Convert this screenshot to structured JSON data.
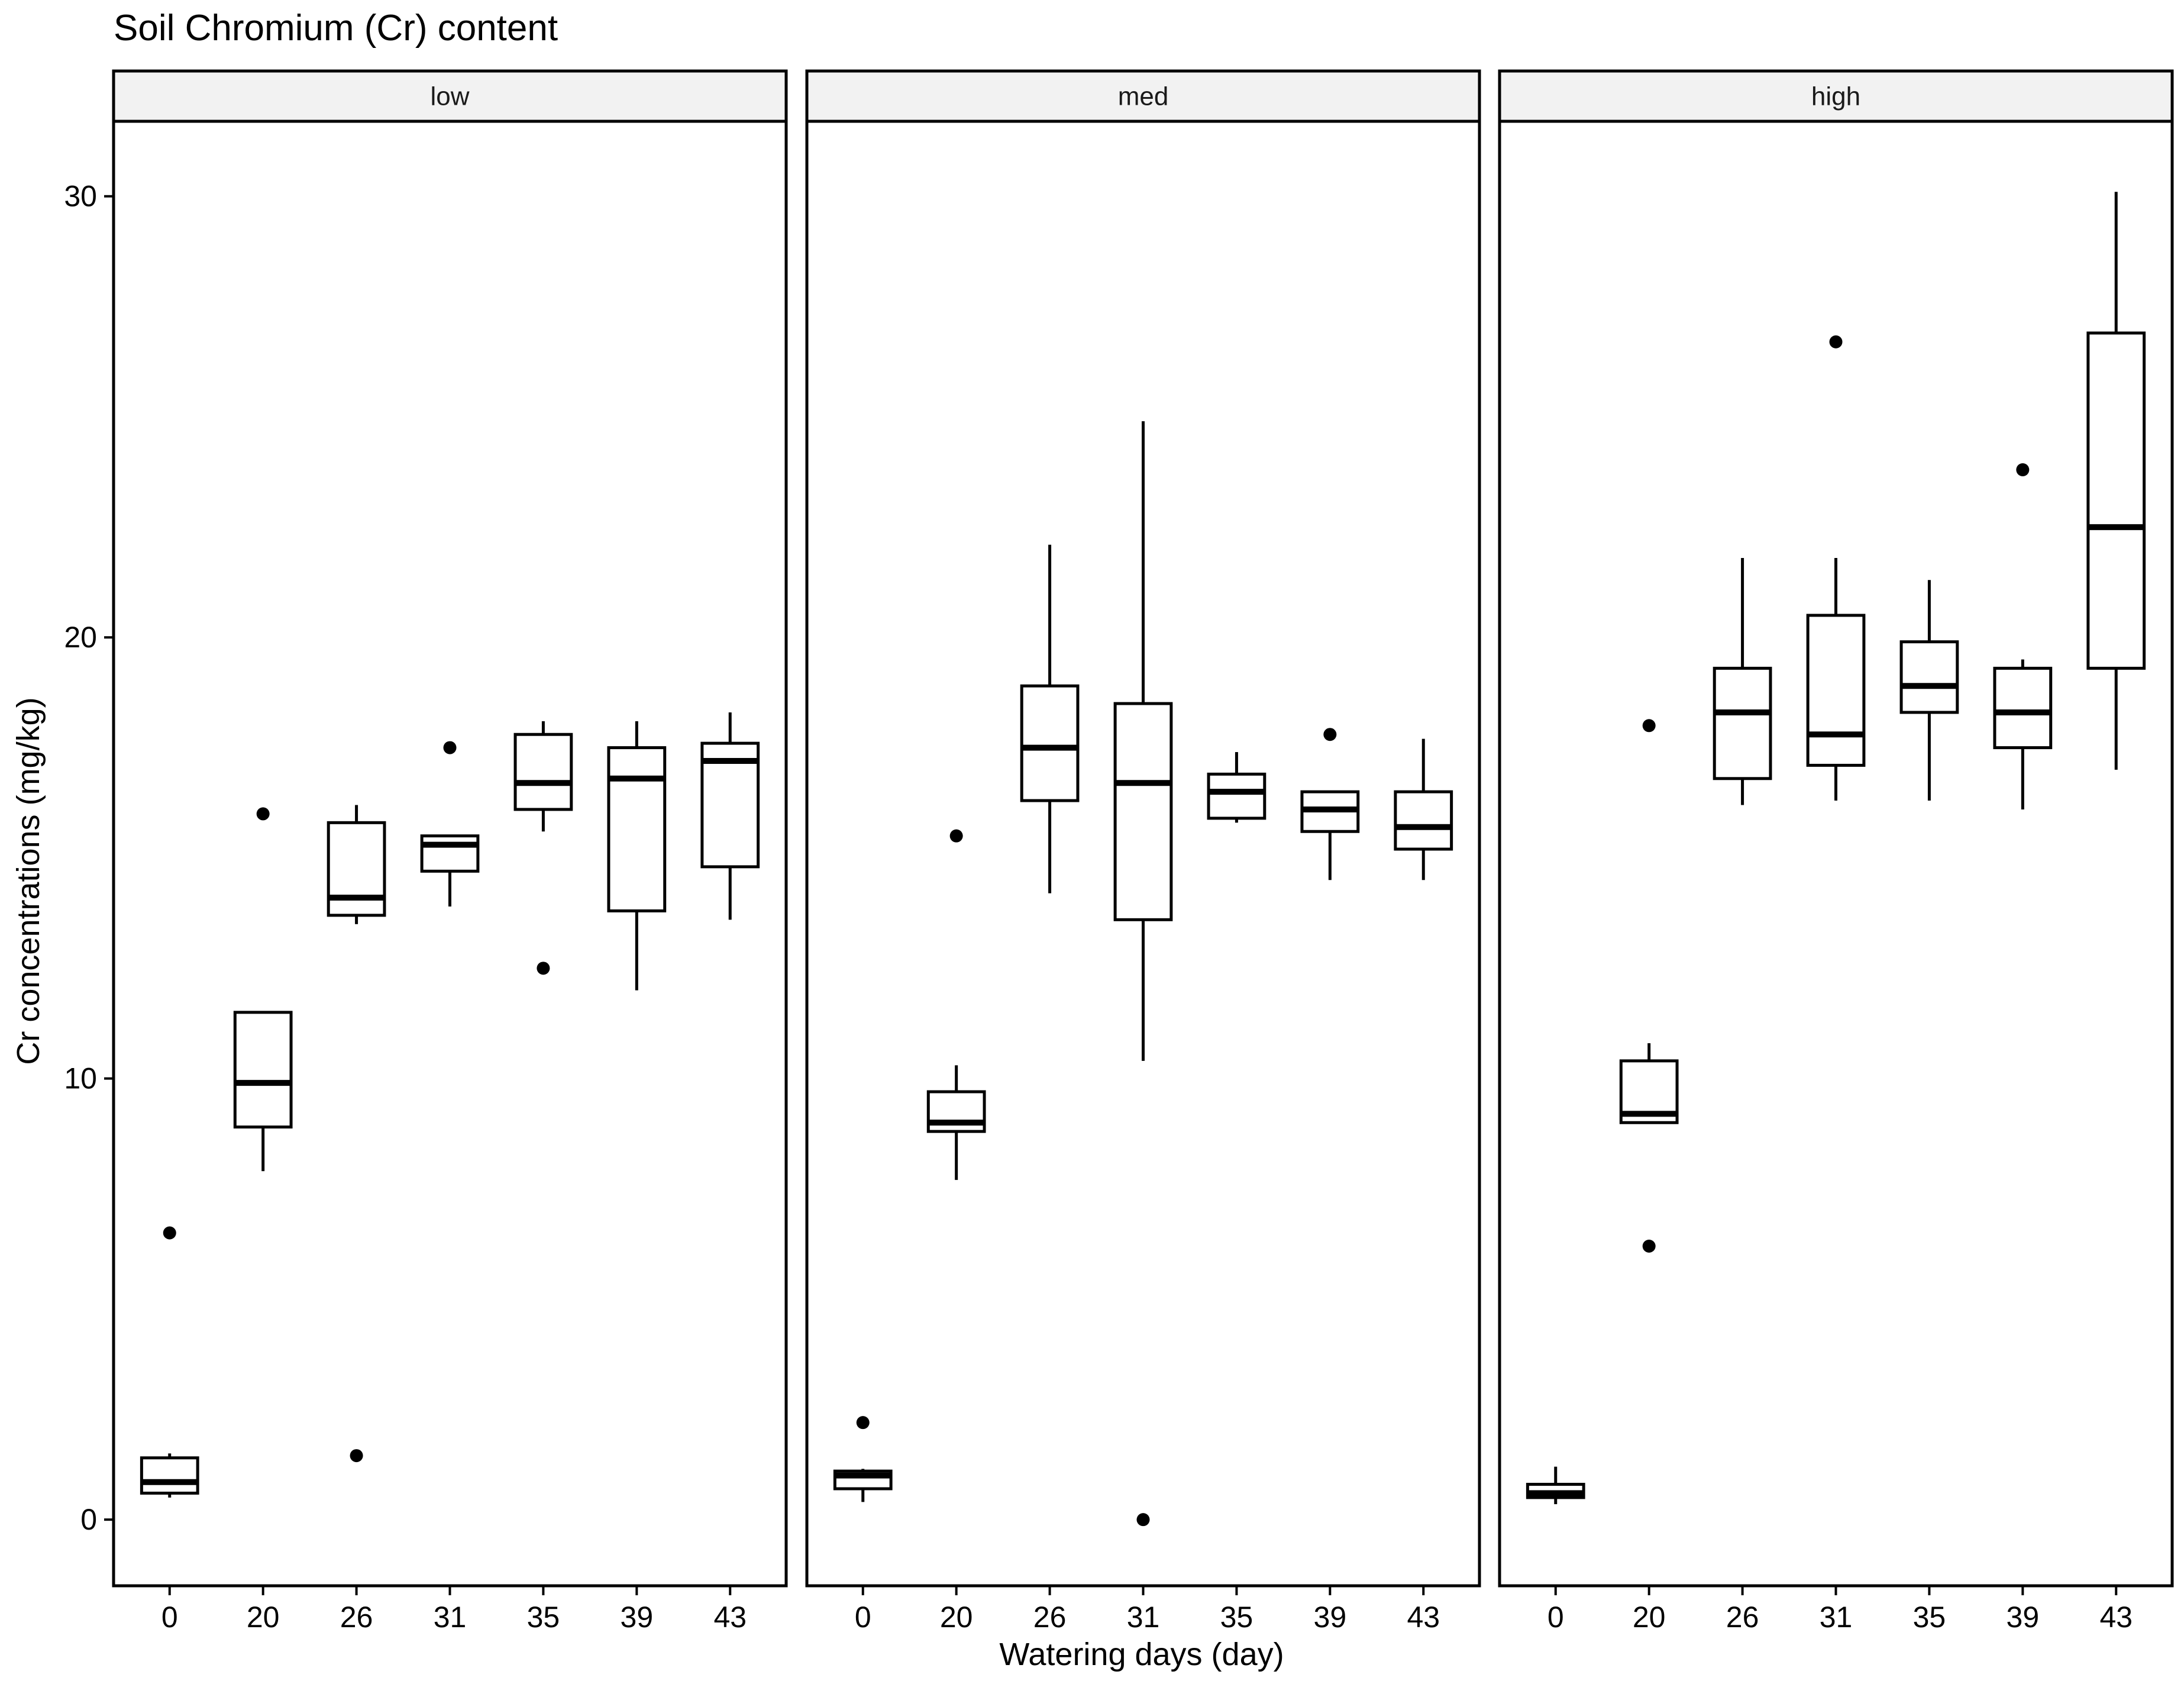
{
  "chart_data": {
    "type": "boxplot",
    "title": "Soil Chromium (Cr) content",
    "xlabel": "Watering days (day)",
    "ylabel": "Cr concentrations (mg/kg)",
    "ylim": [
      -1.5,
      31.7
    ],
    "yticks": [
      0,
      10,
      20,
      30
    ],
    "categories": [
      "0",
      "20",
      "26",
      "31",
      "35",
      "39",
      "43"
    ],
    "panels": [
      {
        "label": "low",
        "boxes": [
          {
            "x": "0",
            "lower": 0.5,
            "q1": 0.6,
            "median": 0.85,
            "q3": 1.4,
            "upper": 1.5,
            "outliers": [
              6.5
            ]
          },
          {
            "x": "20",
            "lower": 7.9,
            "q1": 8.9,
            "median": 9.9,
            "q3": 11.5,
            "upper": 11.5,
            "outliers": [
              16.0
            ]
          },
          {
            "x": "26",
            "lower": 13.5,
            "q1": 13.7,
            "median": 14.1,
            "q3": 15.8,
            "upper": 16.2,
            "outliers": [
              1.45
            ]
          },
          {
            "x": "31",
            "lower": 13.9,
            "q1": 14.7,
            "median": 15.3,
            "q3": 15.5,
            "upper": 15.5,
            "outliers": [
              17.5
            ]
          },
          {
            "x": "35",
            "lower": 15.6,
            "q1": 16.1,
            "median": 16.7,
            "q3": 17.8,
            "upper": 18.1,
            "outliers": [
              12.5
            ]
          },
          {
            "x": "39",
            "lower": 12.0,
            "q1": 13.8,
            "median": 16.8,
            "q3": 17.5,
            "upper": 18.1,
            "outliers": []
          },
          {
            "x": "43",
            "lower": 13.6,
            "q1": 14.8,
            "median": 17.2,
            "q3": 17.6,
            "upper": 18.3,
            "outliers": []
          }
        ]
      },
      {
        "label": "med",
        "boxes": [
          {
            "x": "0",
            "lower": 0.4,
            "q1": 0.7,
            "median": 1.0,
            "q3": 1.1,
            "upper": 1.15,
            "outliers": [
              2.2
            ]
          },
          {
            "x": "20",
            "lower": 7.7,
            "q1": 8.8,
            "median": 9.0,
            "q3": 9.7,
            "upper": 10.3,
            "outliers": [
              15.5
            ]
          },
          {
            "x": "26",
            "lower": 14.2,
            "q1": 16.3,
            "median": 17.5,
            "q3": 18.9,
            "upper": 22.1,
            "outliers": []
          },
          {
            "x": "31",
            "lower": 10.4,
            "q1": 13.6,
            "median": 16.7,
            "q3": 18.5,
            "upper": 24.9,
            "outliers": [
              0.0
            ]
          },
          {
            "x": "35",
            "lower": 15.8,
            "q1": 15.9,
            "median": 16.5,
            "q3": 16.9,
            "upper": 17.4,
            "outliers": []
          },
          {
            "x": "39",
            "lower": 14.5,
            "q1": 15.6,
            "median": 16.1,
            "q3": 16.5,
            "upper": 16.5,
            "outliers": [
              17.8
            ]
          },
          {
            "x": "43",
            "lower": 14.5,
            "q1": 15.2,
            "median": 15.7,
            "q3": 16.5,
            "upper": 17.7,
            "outliers": []
          }
        ]
      },
      {
        "label": "high",
        "boxes": [
          {
            "x": "0",
            "lower": 0.35,
            "q1": 0.5,
            "median": 0.6,
            "q3": 0.8,
            "upper": 1.2,
            "outliers": []
          },
          {
            "x": "20",
            "lower": 9.0,
            "q1": 9.0,
            "median": 9.2,
            "q3": 10.4,
            "upper": 10.8,
            "outliers": [
              18.0,
              6.2
            ]
          },
          {
            "x": "26",
            "lower": 16.2,
            "q1": 16.8,
            "median": 18.3,
            "q3": 19.3,
            "upper": 21.8,
            "outliers": []
          },
          {
            "x": "31",
            "lower": 16.3,
            "q1": 17.1,
            "median": 17.8,
            "q3": 20.5,
            "upper": 21.8,
            "outliers": [
              26.7
            ]
          },
          {
            "x": "35",
            "lower": 16.3,
            "q1": 18.3,
            "median": 18.9,
            "q3": 19.9,
            "upper": 21.3,
            "outliers": []
          },
          {
            "x": "39",
            "lower": 16.1,
            "q1": 17.5,
            "median": 18.3,
            "q3": 19.3,
            "upper": 19.5,
            "outliers": [
              23.8
            ]
          },
          {
            "x": "43",
            "lower": 17.0,
            "q1": 19.3,
            "median": 22.5,
            "q3": 26.9,
            "upper": 30.1,
            "outliers": []
          }
        ]
      }
    ]
  }
}
